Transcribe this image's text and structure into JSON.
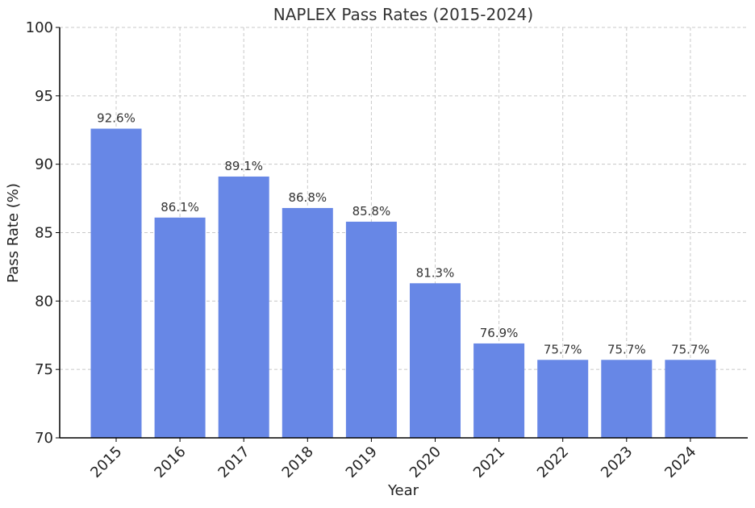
{
  "colors": {
    "bar": "#6787e6",
    "grid": "#c8c8c8",
    "axis": "#000000",
    "background": "#ffffff"
  },
  "chart_data": {
    "type": "bar",
    "title": "NAPLEX Pass Rates (2015-2024)",
    "xlabel": "Year",
    "ylabel": "Pass Rate (%)",
    "categories": [
      "2015",
      "2016",
      "2017",
      "2018",
      "2019",
      "2020",
      "2021",
      "2022",
      "2023",
      "2024"
    ],
    "values": [
      92.6,
      86.1,
      89.1,
      86.8,
      85.8,
      81.3,
      76.9,
      75.7,
      75.7,
      75.7
    ],
    "data_labels": [
      "92.6%",
      "86.1%",
      "89.1%",
      "86.8%",
      "85.8%",
      "81.3%",
      "76.9%",
      "75.7%",
      "75.7%",
      "75.7%"
    ],
    "ylim": [
      70,
      100
    ],
    "yticks": [
      "70",
      "75",
      "80",
      "85",
      "90",
      "95",
      "100"
    ],
    "grid": true,
    "grid_style": "dashed",
    "legend": "none"
  }
}
